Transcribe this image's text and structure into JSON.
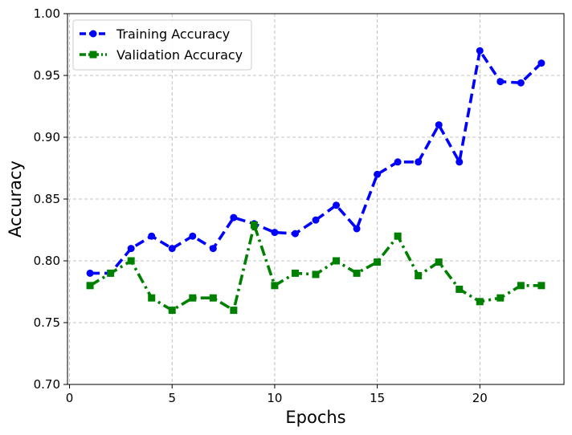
{
  "chart_data": {
    "type": "line",
    "title": "",
    "xlabel": "Epochs",
    "ylabel": "Accuracy",
    "xlim": [
      -0.1,
      24.1
    ],
    "ylim": [
      0.7,
      1.0
    ],
    "xticks": [
      0,
      5,
      10,
      15,
      20
    ],
    "xtick_labels": [
      "0",
      "5",
      "10",
      "15",
      "20"
    ],
    "yticks": [
      0.7,
      0.75,
      0.8,
      0.85,
      0.9,
      0.95,
      1.0
    ],
    "ytick_labels": [
      "0.70",
      "0.75",
      "0.80",
      "0.85",
      "0.90",
      "0.95",
      "1.00"
    ],
    "grid": true,
    "legend_position": "top-left",
    "x": [
      1,
      2,
      3,
      4,
      5,
      6,
      7,
      8,
      9,
      10,
      11,
      12,
      13,
      14,
      15,
      16,
      17,
      18,
      19,
      20,
      21,
      22,
      23
    ],
    "series": [
      {
        "name": "Training Accuracy",
        "color": "#0000ff",
        "marker": "circle",
        "linestyle": "dashed",
        "values": [
          0.79,
          0.79,
          0.81,
          0.82,
          0.81,
          0.82,
          0.81,
          0.835,
          0.83,
          0.823,
          0.822,
          0.833,
          0.845,
          0.826,
          0.87,
          0.88,
          0.88,
          0.91,
          0.88,
          0.97,
          0.945,
          0.944,
          0.96
        ]
      },
      {
        "name": "Validation Accuracy",
        "color": "#008000",
        "marker": "square",
        "linestyle": "dashdot",
        "values": [
          0.78,
          0.79,
          0.8,
          0.77,
          0.76,
          0.77,
          0.77,
          0.76,
          0.829,
          0.78,
          0.79,
          0.789,
          0.8,
          0.79,
          0.799,
          0.82,
          0.788,
          0.799,
          0.777,
          0.767,
          0.77,
          0.78,
          0.78
        ]
      }
    ]
  }
}
